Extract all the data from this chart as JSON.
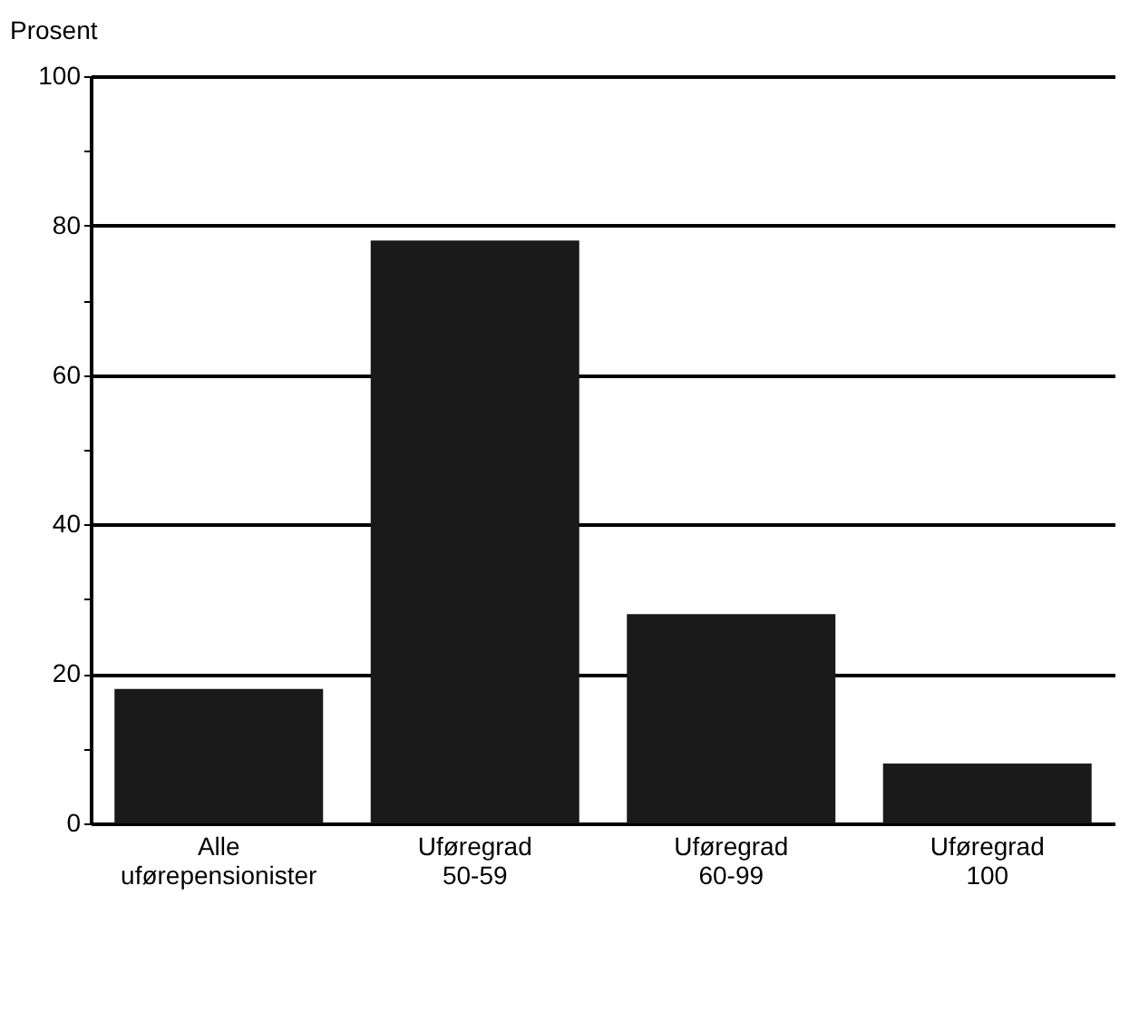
{
  "chart_data": {
    "type": "bar",
    "ylabel": "Prosent",
    "categories": [
      "Alle uførepensionister",
      "Uføregrad 50-59",
      "Uføregrad 60-99",
      "Uføregrad 100"
    ],
    "values": [
      18,
      78,
      28,
      8
    ],
    "color": "#1a1a1a",
    "ylim": [
      0,
      100
    ],
    "yticks": [
      0,
      {
        "value": 10,
        "label": null
      },
      20,
      {
        "value": 30,
        "label": null
      },
      40,
      {
        "value": 50,
        "label": null
      },
      60,
      {
        "value": 70,
        "label": null
      },
      80,
      {
        "value": 90,
        "label": null
      },
      100
    ],
    "grid": "y"
  }
}
